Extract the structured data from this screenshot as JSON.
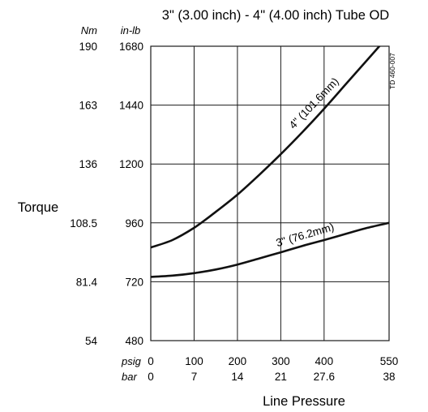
{
  "chart_data": {
    "type": "line",
    "title": "3\" (3.00 inch) - 4\" (4.00 inch) Tube OD",
    "xlabel": "Line Pressure",
    "ylabel": "Torque",
    "document_code": "TD 460-007",
    "grid": true,
    "xlim": [
      0,
      550
    ],
    "ylim": [
      480,
      1680
    ],
    "x_units": [
      {
        "name": "psig",
        "ticks": [
          "0",
          "100",
          "200",
          "300",
          "400",
          "550"
        ]
      },
      {
        "name": "bar",
        "ticks": [
          "0",
          "7",
          "14",
          "21",
          "27.6",
          "38"
        ]
      }
    ],
    "y_units": [
      {
        "name": "Nm",
        "ticks": [
          "190",
          "163",
          "136",
          "108.5",
          "81.4",
          "54"
        ]
      },
      {
        "name": "in-lb",
        "ticks": [
          "1680",
          "1440",
          "1200",
          "960",
          "720",
          "480"
        ]
      }
    ],
    "series": [
      {
        "name": "4\" (101.6mm)",
        "x": [
          0,
          50,
          100,
          150,
          200,
          250,
          300,
          350,
          400,
          450,
          500,
          550
        ],
        "y": [
          860,
          890,
          940,
          1005,
          1075,
          1155,
          1240,
          1330,
          1425,
          1525,
          1625,
          1725
        ]
      },
      {
        "name": "3\" (76.2mm)",
        "x": [
          0,
          50,
          100,
          150,
          200,
          250,
          300,
          350,
          400,
          450,
          500,
          550
        ],
        "y": [
          740,
          745,
          755,
          770,
          790,
          815,
          840,
          866,
          890,
          915,
          940,
          960
        ]
      }
    ]
  }
}
